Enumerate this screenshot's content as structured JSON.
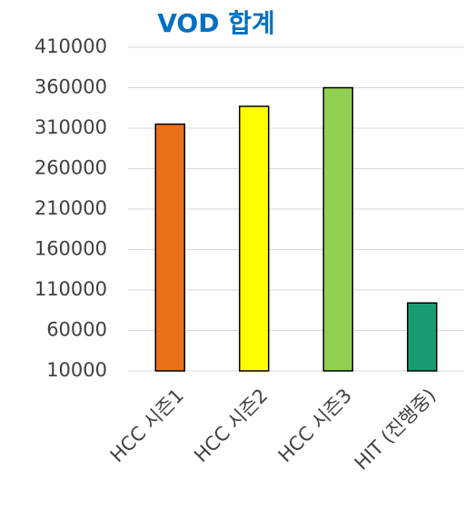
{
  "chart_data": {
    "type": "bar",
    "title": "VOD 합계",
    "categories": [
      "HCC 시즌1",
      "HCC 시즌2",
      "HCC 시즌3",
      "HIT (진행중)"
    ],
    "values": [
      315000,
      337000,
      360000,
      94000
    ],
    "colors": [
      "#e8711a",
      "#ffff00",
      "#92d050",
      "#1a9c72"
    ],
    "ylim": [
      10000,
      410000
    ],
    "yticks": [
      10000,
      60000,
      110000,
      160000,
      210000,
      260000,
      310000,
      360000,
      410000
    ],
    "grid": true
  }
}
